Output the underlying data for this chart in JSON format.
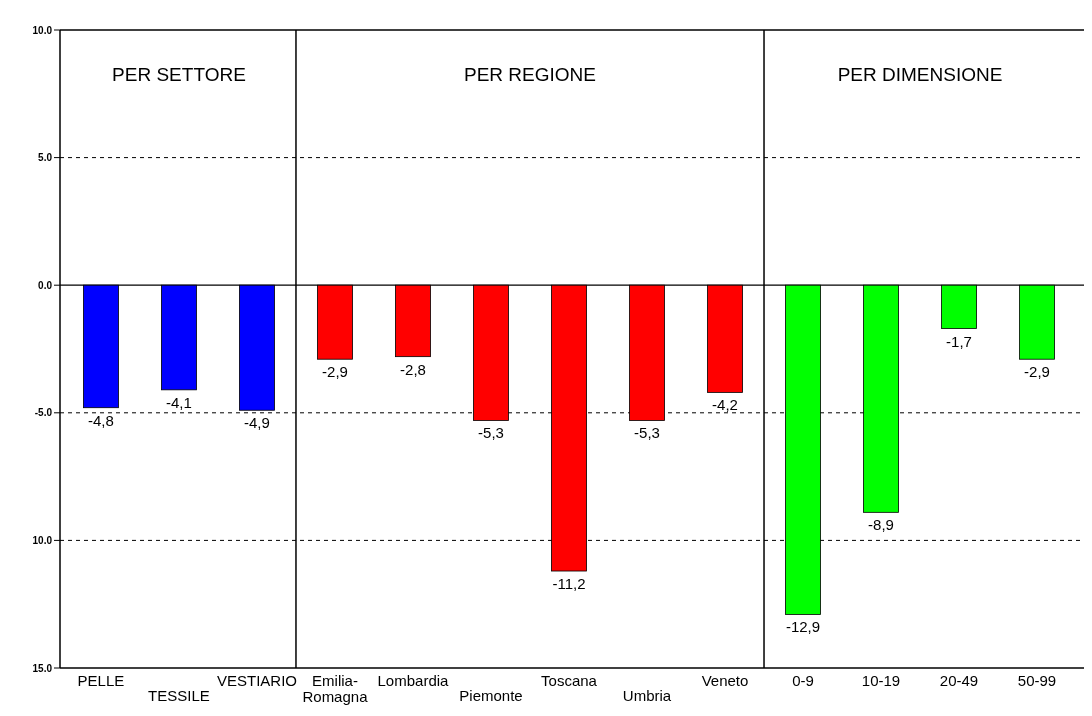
{
  "chart_data": {
    "type": "bar",
    "categories": [
      "PELLE",
      "TESSILE",
      "VESTIARIO",
      "Emilia-Romagna",
      "Lombardia",
      "Piemonte",
      "Toscana",
      "Umbria",
      "Veneto",
      "0-9",
      "10-19",
      "20-49",
      "50-99"
    ],
    "values": [
      -4.8,
      -4.1,
      -4.9,
      -2.9,
      -2.8,
      -5.3,
      -11.2,
      -5.3,
      -4.2,
      -12.9,
      -8.9,
      -1.7,
      -2.9
    ],
    "colors": [
      "#0000ff",
      "#0000ff",
      "#0000ff",
      "#ff0000",
      "#ff0000",
      "#ff0000",
      "#ff0000",
      "#ff0000",
      "#ff0000",
      "#00ff00",
      "#00ff00",
      "#00ff00",
      "#00ff00"
    ],
    "value_labels": [
      "-4,8",
      "-4,1",
      "-4,9",
      "-2,9",
      "-2,8",
      "-5,3",
      "-11,2",
      "-5,3",
      "-4,2",
      "-12,9",
      "-8,9",
      "-1,7",
      "-2,9"
    ],
    "ylim": [
      -15,
      10
    ],
    "yticks": [
      {
        "value": -15,
        "label": "15.0"
      },
      {
        "value": -10,
        "label": "10.0"
      },
      {
        "value": -5,
        "label": "-5.0"
      },
      {
        "value": 0,
        "label": "0.0"
      },
      {
        "value": 5,
        "label": "5.0"
      },
      {
        "value": 10,
        "label": "10.0"
      }
    ],
    "grid": "y",
    "line_style": "dashed",
    "annotations": [
      "PER SETTORE",
      "PER REGIONE",
      "PER DIMENSIONE"
    ]
  }
}
